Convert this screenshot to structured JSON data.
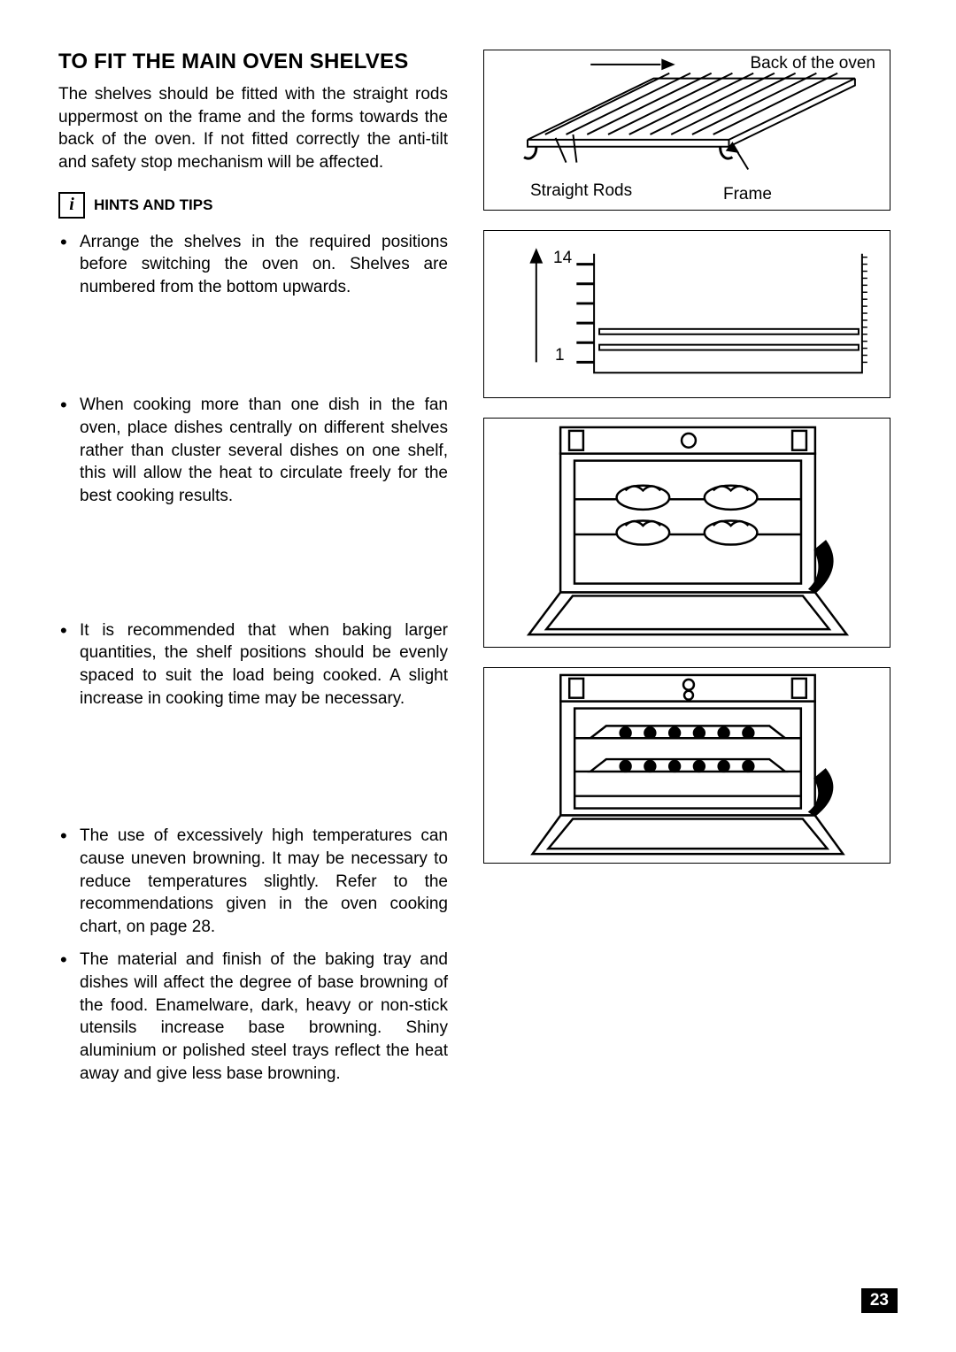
{
  "title": "TO FIT THE MAIN OVEN SHELVES",
  "intro": "The shelves should be fitted with the straight rods uppermost on the frame and the forms towards the back of the oven. If not fitted correctly the anti-tilt and safety stop mechanism will be affected.",
  "info_glyph": "i",
  "hints_heading": "HINTS AND TIPS",
  "hints": [
    {
      "text": "Arrange the shelves in the required positions before switching the oven on. Shelves are numbered from the bottom upwards.",
      "gap_after": 108
    },
    {
      "text": "When cooking more than one dish in the fan oven, place dishes centrally on different shelves rather than cluster several dishes on one shelf, this will allow the heat to circulate freely for the best cooking results.",
      "gap_after": 126
    },
    {
      "text": "It is recommended that when baking larger quantities, the shelf positions should be evenly spaced to suit the load being cooked. A slight increase in cooking time may be necessary.",
      "gap_after": 130
    },
    {
      "text": "The use of excessively high temperatures can cause uneven browning. It may be necessary to reduce temperatures slightly. Refer to the recommendations given in the oven cooking chart, on page 28.",
      "gap_after": 12
    },
    {
      "text": "The material and finish of the baking tray and dishes will affect the degree of base browning of the food. Enamelware, dark, heavy or non-stick utensils increase base browning. Shiny aluminium or polished steel trays reflect the heat away and give less base browning.",
      "gap_after": 0
    }
  ],
  "fig1": {
    "label_back": "Back of the oven",
    "label_rods": "Straight Rods",
    "label_frame": "Frame",
    "stroke": "#000000",
    "fill": "#ffffff"
  },
  "fig2": {
    "top_num": "14",
    "bottom_num": "1",
    "levels": 6,
    "stroke": "#000000"
  },
  "page_number": "23",
  "colors": {
    "text": "#000000",
    "bg": "#ffffff"
  }
}
